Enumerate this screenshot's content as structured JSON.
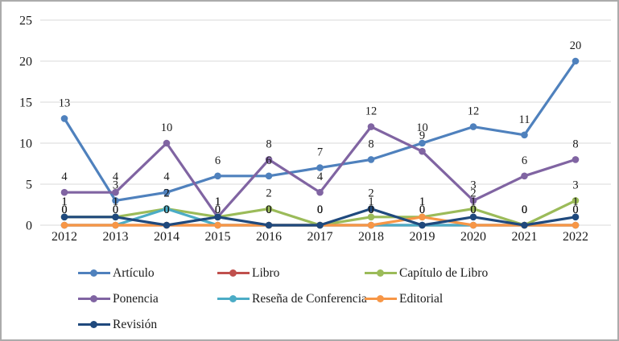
{
  "chart_data": {
    "type": "line",
    "title": "",
    "xlabel": "",
    "ylabel": "",
    "categories": [
      "2012",
      "2013",
      "2014",
      "2015",
      "2016",
      "2017",
      "2018",
      "2019",
      "2020",
      "2021",
      "2022"
    ],
    "yticks": [
      "0",
      "5",
      "10",
      "15",
      "20",
      "25"
    ],
    "ylim": [
      0,
      25
    ],
    "grid": "horizontal",
    "legend_position": "bottom-left, 3 columns",
    "marker": "circle",
    "series": [
      {
        "name": "Artículo",
        "color": "#4F81BD",
        "values": [
          13,
          3,
          4,
          6,
          6,
          7,
          8,
          10,
          12,
          11,
          20
        ]
      },
      {
        "name": "Libro",
        "color": "#C0504D",
        "values": [
          0,
          0,
          0,
          0,
          0,
          0,
          0,
          0,
          0,
          0,
          0
        ]
      },
      {
        "name": "Capítulo de Libro",
        "color": "#9BBB59",
        "values": [
          1,
          1,
          2,
          1,
          2,
          0,
          1,
          1,
          2,
          0,
          3
        ]
      },
      {
        "name": "Ponencia",
        "color": "#8064A2",
        "values": [
          4,
          4,
          10,
          1,
          8,
          4,
          12,
          9,
          3,
          6,
          8
        ]
      },
      {
        "name": "Reseña de Conferencia",
        "color": "#4BACC6",
        "values": [
          0,
          0,
          2,
          0,
          0,
          0,
          0,
          0,
          0,
          0,
          0
        ]
      },
      {
        "name": "Editorial",
        "color": "#F79646",
        "values": [
          0,
          0,
          0,
          0,
          0,
          0,
          0,
          1,
          0,
          0,
          0
        ]
      },
      {
        "name": "Revisión",
        "color": "#1F497D",
        "values": [
          1,
          1,
          0,
          1,
          0,
          0,
          2,
          0,
          1,
          0,
          1
        ]
      }
    ],
    "gridline_color": "#D9D9D9"
  }
}
